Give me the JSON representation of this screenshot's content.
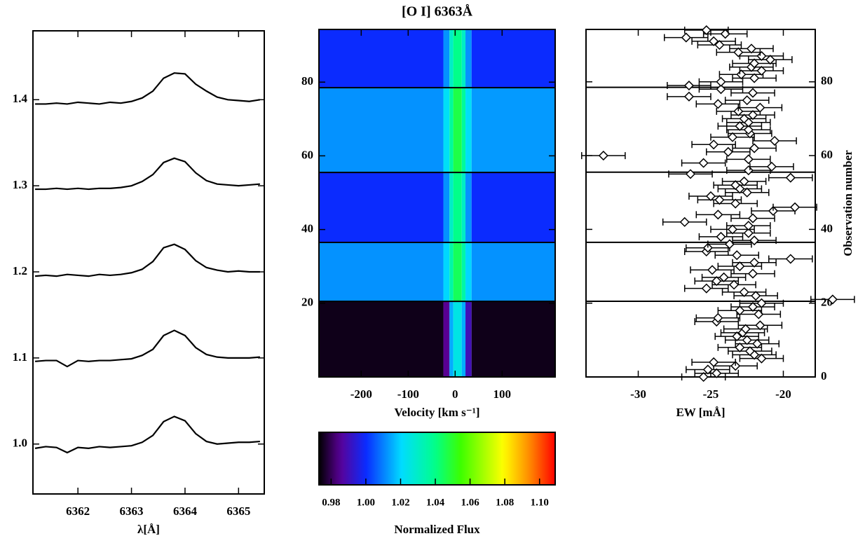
{
  "chart_data": [
    {
      "type": "line",
      "xlabel": "λ[Å]",
      "y_axis_side": "left",
      "xlim": [
        6361.16,
        6365.48
      ],
      "xticks": [
        6362,
        6363,
        6364,
        6365
      ],
      "ylim": [
        0.942,
        1.48
      ],
      "yticks": [
        {
          "value": 1.0,
          "label": "1.0"
        },
        1.1,
        1.2,
        1.3,
        1.4
      ],
      "x": [
        6361.2,
        6361.4,
        6361.6,
        6361.8,
        6362.0,
        6362.2,
        6362.4,
        6362.6,
        6362.8,
        6363.0,
        6363.2,
        6363.4,
        6363.6,
        6363.8,
        6364.0,
        6364.2,
        6364.4,
        6364.6,
        6364.8,
        6365.0,
        6365.2,
        6365.4
      ],
      "series": [
        {
          "color": "#000000",
          "values": [
            0.995,
            0.997,
            0.996,
            0.99,
            0.996,
            0.995,
            0.997,
            0.996,
            0.997,
            0.998,
            1.002,
            1.01,
            1.026,
            1.032,
            1.027,
            1.012,
            1.003,
            1.0,
            1.001,
            1.002,
            1.002,
            1.003
          ]
        },
        {
          "color": "#000000",
          "values": [
            1.096,
            1.097,
            1.097,
            1.09,
            1.097,
            1.096,
            1.097,
            1.097,
            1.098,
            1.099,
            1.103,
            1.11,
            1.126,
            1.132,
            1.126,
            1.112,
            1.104,
            1.101,
            1.1,
            1.1,
            1.1,
            1.101
          ]
        },
        {
          "color": "#000000",
          "values": [
            1.195,
            1.196,
            1.195,
            1.197,
            1.196,
            1.195,
            1.197,
            1.196,
            1.197,
            1.199,
            1.203,
            1.212,
            1.228,
            1.232,
            1.226,
            1.213,
            1.205,
            1.202,
            1.2,
            1.201,
            1.2,
            1.2
          ]
        },
        {
          "color": "#000000",
          "values": [
            1.296,
            1.296,
            1.297,
            1.296,
            1.297,
            1.296,
            1.297,
            1.297,
            1.298,
            1.3,
            1.305,
            1.313,
            1.327,
            1.332,
            1.328,
            1.315,
            1.306,
            1.302,
            1.301,
            1.3,
            1.301,
            1.302
          ]
        },
        {
          "color": "#000000",
          "values": [
            1.395,
            1.395,
            1.396,
            1.395,
            1.397,
            1.396,
            1.395,
            1.397,
            1.396,
            1.398,
            1.402,
            1.41,
            1.425,
            1.431,
            1.43,
            1.418,
            1.41,
            1.403,
            1.4,
            1.399,
            1.398,
            1.4
          ]
        }
      ]
    },
    {
      "type": "heatmap",
      "title": "[O I] 6363Å",
      "xlabel": "Velocity [km s⁻¹]",
      "y_axis_side": "left",
      "xlim": [
        -290,
        213
      ],
      "xticks": [
        -200,
        -100,
        0,
        100
      ],
      "ylim": [
        0,
        94.3
      ],
      "yticks": [
        20,
        40,
        60,
        80
      ],
      "x_edges": [
        -290,
        -25,
        -12,
        -4,
        14,
        22,
        35,
        213
      ],
      "y_edges": [
        0,
        20.5,
        36.5,
        55.5,
        78.5,
        94.3
      ],
      "z": [
        [
          0.975,
          0.985,
          1.015,
          1.025,
          1.015,
          0.99,
          0.975
        ],
        [
          1.012,
          1.02,
          1.035,
          1.045,
          1.035,
          1.02,
          1.012
        ],
        [
          1.0,
          1.012,
          1.03,
          1.04,
          1.03,
          1.012,
          1.0
        ],
        [
          1.012,
          1.022,
          1.037,
          1.047,
          1.037,
          1.022,
          1.013
        ],
        [
          1.0,
          1.012,
          1.03,
          1.04,
          1.03,
          1.012,
          1.0
        ]
      ],
      "hlines": [
        20.5,
        36.5,
        55.5,
        78.5
      ],
      "colormap": "rainbow",
      "colorbar": {
        "label": "Normalized Flux",
        "zlim": [
          0.973,
          1.109
        ],
        "ticks": [
          0.98,
          {
            "value": 1.0,
            "label": "1.00"
          },
          1.02,
          1.04,
          1.06,
          1.08,
          {
            "value": 1.1,
            "label": "1.10"
          }
        ]
      }
    },
    {
      "type": "errorbar",
      "xlabel": "EW [mÅ]",
      "ylabel": "Observation number",
      "y_axis_side": "right",
      "xlim": [
        -33.6,
        -17.8
      ],
      "xticks": [
        -30,
        -25,
        -20
      ],
      "ylim": [
        0,
        94.2
      ],
      "yticks": [
        0,
        20,
        40,
        60,
        80
      ],
      "hlines": [
        20.5,
        36.5,
        55.5,
        78.5
      ],
      "xerr": 1.5,
      "y": [
        0,
        1,
        2,
        3,
        4,
        5,
        6,
        7,
        8,
        9,
        10,
        11,
        12,
        13,
        14,
        15,
        16,
        17,
        18,
        19,
        20,
        21,
        22,
        23,
        24,
        25,
        26,
        27,
        28,
        29,
        30,
        31,
        32,
        33,
        34,
        35,
        36,
        37,
        38,
        39,
        40,
        41,
        42,
        43,
        44,
        45,
        46,
        47,
        48,
        49,
        50,
        51,
        52,
        53,
        54,
        55,
        56,
        57,
        58,
        59,
        60,
        61,
        62,
        63,
        64,
        65,
        66,
        67,
        68,
        69,
        70,
        71,
        72,
        73,
        74,
        75,
        76,
        77,
        78,
        79,
        80,
        81,
        82,
        83,
        84,
        85,
        86,
        87,
        88,
        89,
        90,
        91,
        92,
        93,
        94
      ],
      "x": [
        -25.5,
        -24.6,
        -25.2,
        -23.3,
        -24.8,
        -21.5,
        -22.0,
        -22.3,
        -23.0,
        -21.8,
        -22.5,
        -23.2,
        -22.8,
        -22.6,
        -21.6,
        -24.6,
        -24.5,
        -21.7,
        -23.0,
        -22.1,
        -21.5,
        -16.6,
        -21.9,
        -22.7,
        -25.3,
        -23.4,
        -24.6,
        -24.1,
        -22.1,
        -24.9,
        -23.0,
        -22.0,
        -19.5,
        -23.2,
        -25.3,
        -25.2,
        -23.7,
        -22.0,
        -24.3,
        -22.4,
        -23.5,
        -22.4,
        -26.8,
        -22.1,
        -24.5,
        -20.7,
        -19.2,
        -23.3,
        -24.4,
        -25.0,
        -22.5,
        -23.0,
        -23.3,
        -22.7,
        -19.5,
        -26.4,
        -22.4,
        -20.8,
        -25.5,
        -22.4,
        -32.4,
        -23.8,
        -22.0,
        -24.8,
        -20.6,
        -23.5,
        -22.3,
        -22.4,
        -23.0,
        -22.4,
        -22.7,
        -22.1,
        -23.1,
        -21.6,
        -24.5,
        -22.5,
        -26.5,
        -22.1,
        -24.3,
        -26.5,
        -24.3,
        -22.0,
        -22.9,
        -21.5,
        -22.2,
        -22.0,
        -20.9,
        -21.5,
        -23.1,
        -22.2,
        -24.4,
        -24.8,
        -26.7,
        -24.0,
        -25.3
      ]
    }
  ]
}
